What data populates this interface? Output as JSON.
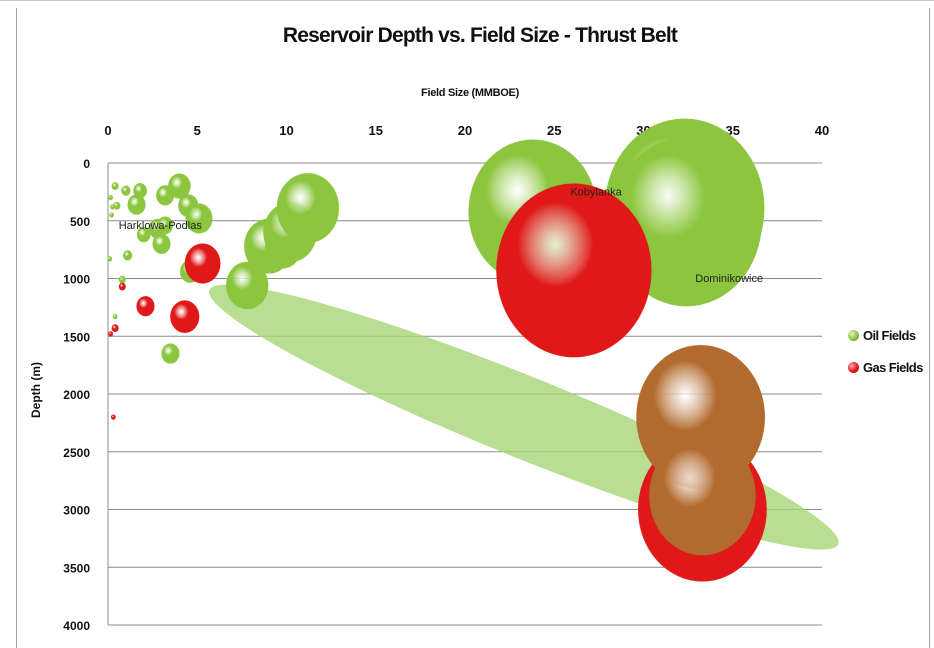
{
  "chart_data": {
    "type": "scatter",
    "subtype": "bubble",
    "title": "Reservoir Depth vs. Field Size - Thrust Belt",
    "xlabel": "Field Size (MMBOE)",
    "ylabel": "Depth (m)",
    "xlim": [
      0,
      40
    ],
    "ylim": [
      0,
      4000
    ],
    "y_inverted": true,
    "x_axis_position": "top",
    "x_ticks": [
      "0",
      "5",
      "10",
      "15",
      "20",
      "25",
      "30",
      "35",
      "40"
    ],
    "y_ticks": [
      "0",
      "500",
      "1000",
      "1500",
      "2000",
      "2500",
      "3000",
      "3500",
      "4000"
    ],
    "grid": "horizontal",
    "legend_position": "right",
    "colors": {
      "oil": "#8cc63f",
      "gas": "#e01818",
      "highlight": "#a8d476"
    },
    "series": [
      {
        "name": "Oil Fields",
        "color": "#8cc63f",
        "points": [
          {
            "x": 0.15,
            "y": 300,
            "size": 0.2
          },
          {
            "x": 0.25,
            "y": 380,
            "size": 0.2
          },
          {
            "x": 0.2,
            "y": 450,
            "size": 0.2
          },
          {
            "x": 0.4,
            "y": 200,
            "size": 0.3
          },
          {
            "x": 0.5,
            "y": 370,
            "size": 0.3
          },
          {
            "x": 0.1,
            "y": 830,
            "size": 0.2
          },
          {
            "x": 0.4,
            "y": 1330,
            "size": 0.2
          },
          {
            "x": 1.0,
            "y": 240,
            "size": 0.4
          },
          {
            "x": 1.8,
            "y": 240,
            "size": 0.6
          },
          {
            "x": 1.6,
            "y": 360,
            "size": 0.8
          },
          {
            "x": 2.0,
            "y": 620,
            "size": 0.6
          },
          {
            "x": 1.1,
            "y": 800,
            "size": 0.4
          },
          {
            "x": 0.8,
            "y": 1010,
            "size": 0.3
          },
          {
            "x": 3.2,
            "y": 280,
            "size": 0.8
          },
          {
            "x": 4.0,
            "y": 200,
            "size": 1.0
          },
          {
            "x": 4.5,
            "y": 370,
            "size": 0.9
          },
          {
            "x": 2.8,
            "y": 570,
            "size": 0.8
          },
          {
            "x": 3.2,
            "y": 540,
            "size": 0.7
          },
          {
            "x": 3.0,
            "y": 700,
            "size": 0.8
          },
          {
            "x": 5.1,
            "y": 480,
            "size": 1.2
          },
          {
            "x": 4.6,
            "y": 940,
            "size": 0.9
          },
          {
            "x": 3.5,
            "y": 1650,
            "size": 0.8
          },
          {
            "x": 7.8,
            "y": 1060,
            "size": 1.9
          },
          {
            "x": 9.0,
            "y": 720,
            "size": 2.2
          },
          {
            "x": 9.8,
            "y": 740,
            "size": 1.6
          },
          {
            "x": 10.2,
            "y": 600,
            "size": 2.4
          },
          {
            "x": 11.2,
            "y": 390,
            "size": 2.8
          },
          {
            "x": 23.8,
            "y": 420,
            "size": 5.8
          },
          {
            "x": 32.3,
            "y": 390,
            "size": 7.2
          },
          {
            "x": 32.4,
            "y": 510,
            "size": 6.8
          }
        ]
      },
      {
        "name": "Gas Fields",
        "color": "#e01818",
        "points": [
          {
            "x": 0.8,
            "y": 1070,
            "size": 0.3
          },
          {
            "x": 0.4,
            "y": 1430,
            "size": 0.3
          },
          {
            "x": 0.15,
            "y": 1480,
            "size": 0.2
          },
          {
            "x": 0.3,
            "y": 2200,
            "size": 0.2
          },
          {
            "x": 2.1,
            "y": 1240,
            "size": 0.8
          },
          {
            "x": 4.3,
            "y": 1330,
            "size": 1.3
          },
          {
            "x": 5.3,
            "y": 870,
            "size": 1.6
          },
          {
            "x": 26.1,
            "y": 930,
            "size": 7.0
          },
          {
            "x": 33.3,
            "y": 3000,
            "size": 5.8
          }
        ]
      },
      {
        "name": "Gas Fields",
        "color": "#b36a2e",
        "points": [
          {
            "x": 33.2,
            "y": 2200,
            "size": 5.8
          },
          {
            "x": 33.3,
            "y": 2880,
            "size": 4.8
          }
        ]
      }
    ],
    "annotations": [
      {
        "text": "Harklowa-Podlas",
        "x": 0.6,
        "y": 570
      },
      {
        "text": "Kobylanka",
        "x": 25.9,
        "y": 280
      },
      {
        "text": "Dominikowice",
        "x": 34.8,
        "y": 1030
      }
    ],
    "highlight_ellipse": {
      "cx": 23.3,
      "cy": 2200,
      "rx": 19,
      "ry": 450,
      "angle_deg": 22
    }
  },
  "legend": {
    "oil_label": "Oil Fields",
    "gas_label": "Gas Fields"
  }
}
